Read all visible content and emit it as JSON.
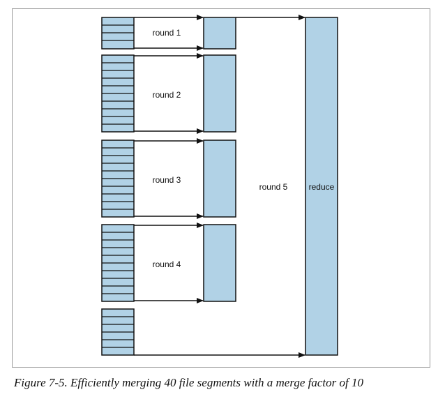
{
  "diagram": {
    "round_labels": [
      "round 1",
      "round 2",
      "round 3",
      "round 4",
      "round 5"
    ],
    "reduce_label": "reduce",
    "colors": {
      "segment_fill": "#b1d2e6",
      "stroke": "#111111",
      "frame": "#9a9a9a"
    },
    "segment_groups": [
      {
        "segments": 4,
        "round": "round 1"
      },
      {
        "segments": 10,
        "round": "round 2"
      },
      {
        "segments": 10,
        "round": "round 3"
      },
      {
        "segments": 10,
        "round": "round 4"
      },
      {
        "segments": 6,
        "round": "round 5"
      }
    ]
  },
  "caption": "Figure 7-5. Efficiently merging 40 file segments with a merge factor of 10"
}
